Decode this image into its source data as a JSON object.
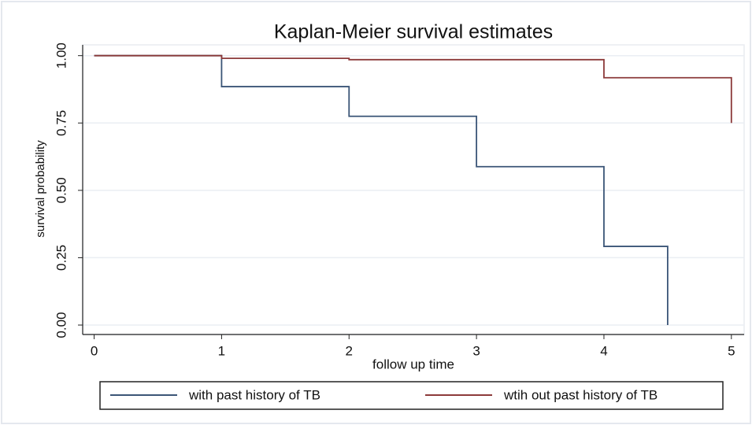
{
  "chart_data": {
    "type": "step",
    "title": "Kaplan-Meier survival estimates",
    "xlabel": "follow up time",
    "ylabel": "survival probability",
    "xlim": [
      -0.09,
      5.1
    ],
    "ylim": [
      -0.035,
      1.04
    ],
    "xticks": [
      0,
      1,
      2,
      3,
      4,
      5
    ],
    "yticks": [
      {
        "value": 0,
        "label": "0.00"
      },
      {
        "value": 0.25,
        "label": "0.25"
      },
      {
        "value": 0.5,
        "label": "0.50"
      },
      {
        "value": 0.75,
        "label": "0.75"
      },
      {
        "value": 1,
        "label": "1.00"
      }
    ],
    "grid": true,
    "legend": "bottom",
    "series": [
      {
        "name": "with past history of TB",
        "color": "#3b5577",
        "x": [
          0,
          1,
          2,
          3,
          4,
          4.5
        ],
        "values": [
          1,
          0.885,
          0.775,
          0.588,
          0.292,
          0
        ]
      },
      {
        "name": "wtih out past history of TB",
        "color": "#8c3a3a",
        "x": [
          0,
          1,
          2,
          4,
          5
        ],
        "values": [
          1,
          0.99,
          0.985,
          0.918,
          0.75
        ]
      }
    ]
  }
}
